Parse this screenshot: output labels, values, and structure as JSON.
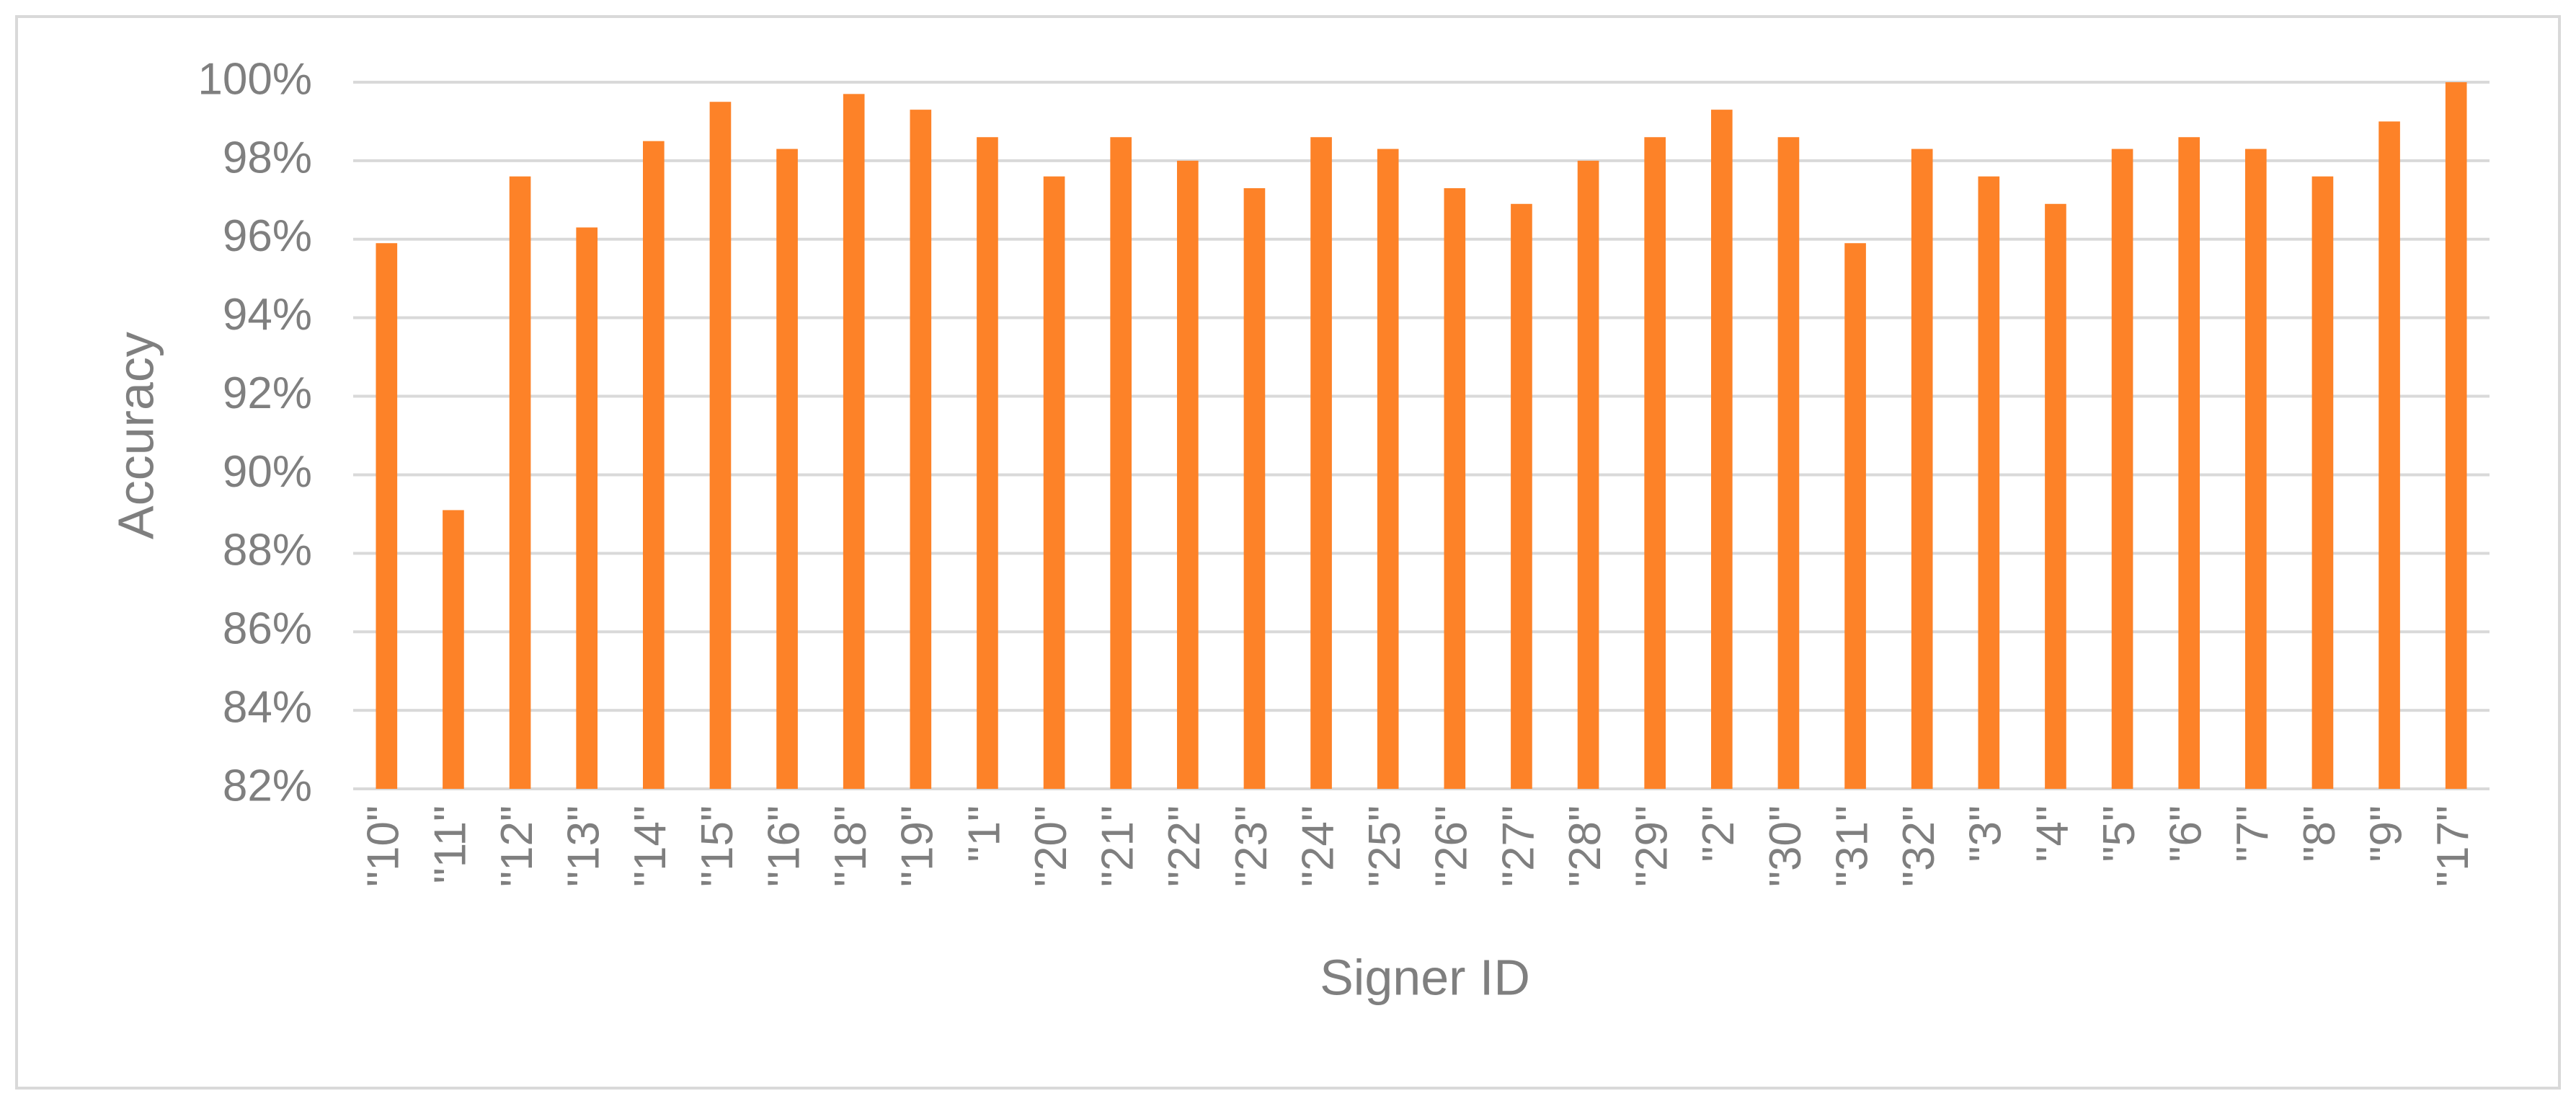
{
  "chart_data": {
    "type": "bar",
    "x_label": "Signer ID",
    "y_label": "Accuracy",
    "categories": [
      "\"10\"",
      "\"11\"",
      "\"12\"",
      "\"13\"",
      "\"14\"",
      "\"15\"",
      "\"16\"",
      "\"18\"",
      "\"19\"",
      "\"1\"",
      "\"20\"",
      "\"21\"",
      "\"22\"",
      "\"23\"",
      "\"24\"",
      "\"25\"",
      "\"26\"",
      "\"27\"",
      "\"28\"",
      "\"29\"",
      "\"2\"",
      "\"30\"",
      "\"31\"",
      "\"32\"",
      "\"3\"",
      "\"4\"",
      "\"5\"",
      "\"6\"",
      "\"7\"",
      "\"8\"",
      "\"9\"",
      "\"17\""
    ],
    "values": [
      95.9,
      89.1,
      97.6,
      96.3,
      98.5,
      99.5,
      98.3,
      99.7,
      99.3,
      98.6,
      97.6,
      98.6,
      98.0,
      97.3,
      98.6,
      98.3,
      97.3,
      96.9,
      98.0,
      98.6,
      99.3,
      98.6,
      95.9,
      98.3,
      97.6,
      96.9,
      98.3,
      98.6,
      98.3,
      97.6,
      99.0,
      100
    ],
    "color": "#fd8228",
    "ylim": [
      82,
      100
    ],
    "yticks": [
      {
        "value": 82,
        "label": "82%"
      },
      {
        "value": 84,
        "label": "84%"
      },
      {
        "value": 86,
        "label": "86%"
      },
      {
        "value": 88,
        "label": "88%"
      },
      {
        "value": 90,
        "label": "90%"
      },
      {
        "value": 92,
        "label": "92%"
      },
      {
        "value": 94,
        "label": "94%"
      },
      {
        "value": 96,
        "label": "96%"
      },
      {
        "value": 98,
        "label": "98%"
      },
      {
        "value": 100,
        "label": "100%"
      }
    ],
    "grid": true
  }
}
